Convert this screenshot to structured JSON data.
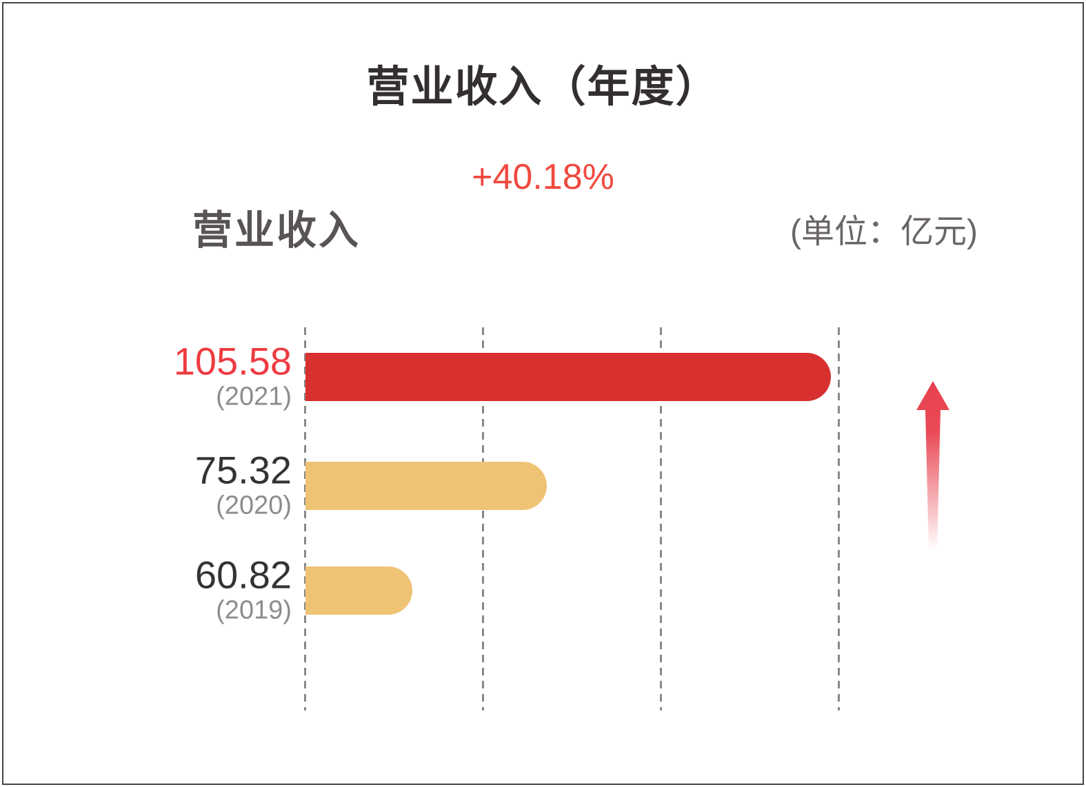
{
  "header": {
    "title": "营业收入（年度）",
    "growth_label": "+40.18%",
    "series_label": "营业收入",
    "unit_label": "(单位：亿元)"
  },
  "rows": [
    {
      "value": "105.58",
      "year": "(2021)",
      "value_color": "#ed3b41",
      "bar_color": "#d7302f",
      "bar_width_pct": 98.4
    },
    {
      "value": "75.32",
      "year": "(2020)",
      "value_color": "#363233",
      "bar_color": "#efc374",
      "bar_width_pct": 45.2
    },
    {
      "value": "60.82",
      "year": "(2019)",
      "value_color": "#363233",
      "bar_color": "#efc374",
      "bar_width_pct": 20.0
    }
  ],
  "colors": {
    "accent_red": "#d7302f",
    "accent_tan": "#efc374",
    "growth_text": "#f0493e",
    "value_highlight": "#ed3b41",
    "title_text": "#332e30",
    "series_label_text": "#585354",
    "unit_text": "#6a6566",
    "year_text": "#8e8b8c",
    "gridline": "#8b8788",
    "arrow": "#e8414e",
    "frame_border": "#474143"
  },
  "icons": {
    "up_arrow": "red upward growth arrow fading toward bottom"
  },
  "chart_data": {
    "type": "bar",
    "orientation": "horizontal",
    "title": "营业收入（年度）",
    "subtitle": "+40.18%",
    "series_name": "营业收入",
    "unit": "亿元",
    "categories": [
      "2021",
      "2020",
      "2019"
    ],
    "values": [
      105.58,
      75.32,
      60.82
    ],
    "value_labels": [
      "105.58",
      "75.32",
      "60.82"
    ],
    "growth_pct_yoy": 40.18,
    "bar_colors": [
      "#d7302f",
      "#efc374",
      "#efc374"
    ],
    "legend": "none",
    "axis_tick_labels": "none",
    "gridlines": {
      "style": "dashed",
      "orientation": "vertical",
      "count": 4
    },
    "value_labels_position": "left-of-bars",
    "annotations": [
      "red upward arrow at right side indicating growth"
    ]
  }
}
